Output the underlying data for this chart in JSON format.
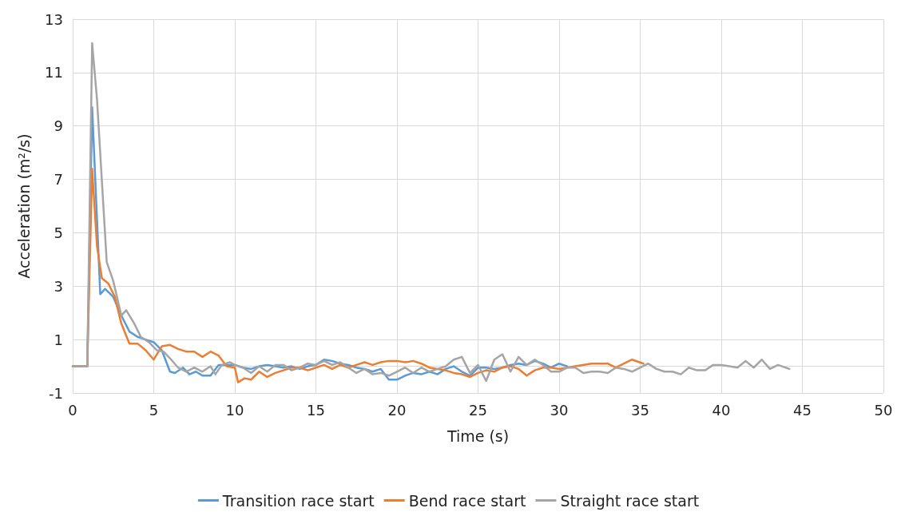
{
  "chart_data": {
    "type": "line",
    "xlabel": "Time (s)",
    "ylabel": "Acceleration (m²/s)",
    "xlim": [
      0,
      50
    ],
    "xticks": [
      0,
      5,
      10,
      15,
      20,
      25,
      30,
      35,
      40,
      45,
      50
    ],
    "ylim": [
      -1,
      13
    ],
    "yticks": [
      -1,
      1,
      3,
      5,
      7,
      9,
      11,
      13
    ],
    "grid": true,
    "legend": "bottom",
    "marker": "none",
    "line_style": "solid",
    "series": [
      {
        "name": "Transition race start",
        "color": "#5b9bd5",
        "x": [
          0,
          0.9,
          1.2,
          1.7,
          2.0,
          2.5,
          3,
          3.5,
          4,
          4.5,
          5,
          5.5,
          6,
          6.3,
          6.8,
          7.2,
          7.6,
          8,
          8.5,
          9,
          9.5,
          10,
          10.5,
          11,
          11.5,
          12,
          12.5,
          13,
          13.5,
          14,
          14.5,
          15,
          15.5,
          16,
          16.5,
          17,
          17.5,
          18,
          18.5,
          19,
          19.5,
          20,
          20.5,
          21,
          21.5,
          22,
          22.5,
          23,
          23.5,
          24,
          24.5,
          25,
          25.5,
          26,
          26.5,
          27,
          27.5,
          28,
          28.5,
          29,
          29.5,
          30,
          30.5
        ],
        "values": [
          0,
          0,
          9.7,
          2.7,
          2.9,
          2.6,
          1.9,
          1.3,
          1.1,
          1.0,
          0.9,
          0.6,
          -0.2,
          -0.25,
          -0.05,
          -0.3,
          -0.2,
          -0.35,
          -0.35,
          0.05,
          0.05,
          0.05,
          -0.05,
          -0.1,
          0,
          0.05,
          0,
          -0.05,
          0,
          -0.1,
          0,
          0.05,
          0.25,
          0.2,
          0.1,
          0.05,
          -0.05,
          -0.1,
          -0.2,
          -0.1,
          -0.5,
          -0.5,
          -0.35,
          -0.25,
          -0.3,
          -0.2,
          -0.3,
          -0.1,
          0,
          -0.2,
          -0.35,
          -0.05,
          -0.05,
          -0.1,
          -0.05,
          0.05,
          0.1,
          0.05,
          0.2,
          0.1,
          -0.05,
          0.1,
          0
        ]
      },
      {
        "name": "Bend race start",
        "color": "#ed7d31",
        "x": [
          0,
          0.9,
          1.2,
          1.5,
          1.8,
          2.2,
          2.6,
          3,
          3.5,
          4,
          4.5,
          5,
          5.5,
          6,
          6.5,
          7,
          7.5,
          8,
          8.5,
          9,
          9.5,
          10,
          10.2,
          10.6,
          11,
          11.5,
          12,
          12.5,
          13,
          13.5,
          14,
          14.5,
          15,
          15.5,
          16,
          16.5,
          17,
          17.5,
          18,
          18.5,
          19,
          19.5,
          20,
          20.5,
          21,
          21.5,
          22,
          22.5,
          23,
          23.5,
          24,
          24.5,
          25,
          25.5,
          26,
          26.5,
          27,
          27.5,
          28,
          28.5,
          29,
          29.5,
          30,
          31,
          32,
          33,
          33.5,
          34,
          34.5,
          35.2
        ],
        "values": [
          0,
          0,
          7.4,
          4.5,
          3.3,
          3.1,
          2.6,
          1.6,
          0.85,
          0.85,
          0.6,
          0.25,
          0.75,
          0.8,
          0.65,
          0.55,
          0.55,
          0.35,
          0.55,
          0.4,
          0,
          -0.05,
          -0.6,
          -0.45,
          -0.5,
          -0.2,
          -0.4,
          -0.25,
          -0.15,
          -0.05,
          -0.05,
          -0.15,
          -0.05,
          0.05,
          -0.1,
          0.05,
          -0.05,
          0.05,
          0.15,
          0.05,
          0.15,
          0.2,
          0.2,
          0.15,
          0.2,
          0.1,
          -0.05,
          -0.1,
          -0.15,
          -0.25,
          -0.3,
          -0.4,
          -0.25,
          -0.15,
          -0.2,
          -0.05,
          0,
          -0.1,
          -0.35,
          -0.15,
          -0.05,
          -0.05,
          -0.1,
          0,
          0.1,
          0.1,
          -0.05,
          0.1,
          0.25,
          0.1
        ]
      },
      {
        "name": "Straight race start",
        "color": "#a5a5a5",
        "x": [
          0,
          0.9,
          1.2,
          1.5,
          2.1,
          2.5,
          3,
          3.3,
          3.8,
          4.2,
          4.7,
          5.2,
          5.6,
          6,
          6.5,
          7,
          7.5,
          8,
          8.5,
          8.8,
          9.2,
          9.7,
          10,
          10.5,
          11,
          11.5,
          12,
          12.5,
          13,
          13.5,
          14,
          14.5,
          15,
          15.5,
          16,
          16.5,
          17,
          17.5,
          18,
          18.5,
          19,
          19.5,
          20,
          20.5,
          21,
          21.5,
          22,
          22.5,
          23,
          23.5,
          24,
          24.5,
          25,
          25.5,
          26,
          26.5,
          27,
          27.5,
          28,
          28.5,
          29,
          29.5,
          30,
          30.5,
          31,
          31.5,
          32,
          32.5,
          33,
          33.5,
          34,
          34.5,
          35,
          35.5,
          36,
          36.5,
          37,
          37.5,
          38,
          38.5,
          39,
          39.5,
          40,
          40.5,
          41,
          41.5,
          42,
          42.5,
          43,
          43.5,
          44.2
        ],
        "values": [
          0,
          0,
          12.1,
          10,
          3.9,
          3.2,
          1.9,
          2.1,
          1.6,
          1.1,
          0.9,
          0.6,
          0.55,
          0.3,
          -0.05,
          -0.2,
          -0.05,
          -0.2,
          0,
          -0.3,
          0.05,
          0.15,
          0.05,
          -0.05,
          -0.25,
          0,
          -0.2,
          0.05,
          0.05,
          -0.15,
          -0.05,
          0.1,
          0.05,
          0.2,
          0.05,
          0.15,
          -0.05,
          -0.25,
          -0.1,
          -0.3,
          -0.25,
          -0.35,
          -0.2,
          -0.05,
          -0.25,
          -0.05,
          -0.2,
          -0.1,
          0,
          0.25,
          0.35,
          -0.25,
          0.05,
          -0.55,
          0.25,
          0.45,
          -0.2,
          0.35,
          0.05,
          0.25,
          0.05,
          -0.2,
          -0.2,
          -0.05,
          -0.05,
          -0.25,
          -0.2,
          -0.2,
          -0.25,
          -0.05,
          -0.1,
          -0.2,
          -0.05,
          0.1,
          -0.1,
          -0.2,
          -0.2,
          -0.3,
          -0.05,
          -0.15,
          -0.15,
          0.05,
          0.05,
          0,
          -0.05,
          0.2,
          -0.05,
          0.25,
          -0.1,
          0.05,
          -0.1
        ]
      }
    ]
  }
}
